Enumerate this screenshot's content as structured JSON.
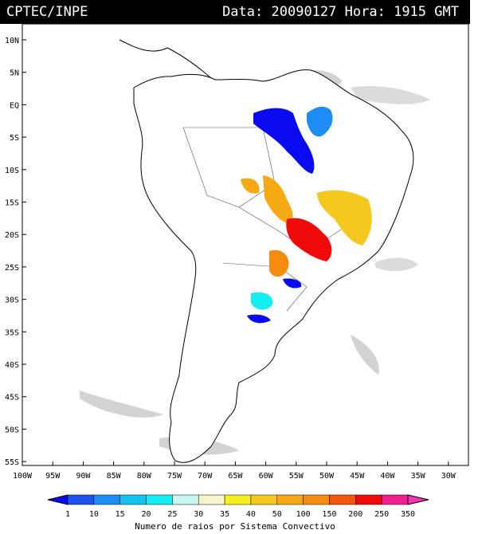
{
  "header": {
    "org": "CPTEC/INPE",
    "date_label": "Data:",
    "date_value": "20090127",
    "hour_label": "Hora:",
    "hour_value": "1915",
    "tz": "GMT"
  },
  "map": {
    "lat_ticks": [
      "10N",
      "5N",
      "EQ",
      "5S",
      "10S",
      "15S",
      "20S",
      "25S",
      "30S",
      "35S",
      "40S",
      "45S",
      "50S",
      "55S"
    ],
    "lon_ticks": [
      "100W",
      "95W",
      "90W",
      "85W",
      "80W",
      "75W",
      "70W",
      "65W",
      "60W",
      "55W",
      "50W",
      "45W",
      "40W",
      "35W",
      "30W"
    ],
    "lat_range": [
      10,
      -55
    ],
    "lon_range": [
      -100,
      -30
    ]
  },
  "legend": {
    "values": [
      "1",
      "10",
      "15",
      "20",
      "25",
      "30",
      "35",
      "40",
      "50",
      "100",
      "150",
      "200",
      "250",
      "350"
    ],
    "colors": [
      "#0a0af0",
      "#1e4ff0",
      "#1e8cf5",
      "#14c3f0",
      "#14eef0",
      "#c8f5f0",
      "#f5f5c8",
      "#f5f01e",
      "#f5c81e",
      "#f5aa14",
      "#f58c0f",
      "#f5550f",
      "#f00a0a",
      "#f01e8c",
      "#f032b4"
    ],
    "title": "Numero de raios por Sistema Convectivo"
  }
}
